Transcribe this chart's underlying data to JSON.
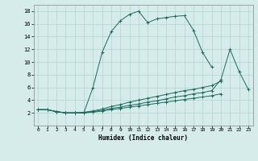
{
  "title": "",
  "xlabel": "Humidex (Indice chaleur)",
  "ylabel": "",
  "bg_color": "#d6ecea",
  "line_color": "#1a6b5e",
  "grid_color": "#b0d4cf",
  "xlim": [
    -0.5,
    23.5
  ],
  "ylim": [
    0,
    19
  ],
  "xticks": [
    0,
    1,
    2,
    3,
    4,
    5,
    6,
    7,
    8,
    9,
    10,
    11,
    12,
    13,
    14,
    15,
    16,
    17,
    18,
    19,
    20,
    21,
    22,
    23
  ],
  "yticks": [
    2,
    4,
    6,
    8,
    10,
    12,
    14,
    16,
    18
  ],
  "series": [
    {
      "x": [
        0,
        1,
        2,
        3,
        4,
        5,
        6,
        7,
        8,
        9,
        10,
        11,
        12,
        13,
        14,
        15,
        16,
        17,
        18,
        19
      ],
      "y": [
        2.5,
        2.5,
        2.2,
        2.0,
        2.0,
        2.0,
        6.0,
        11.5,
        14.8,
        16.5,
        17.5,
        18.0,
        16.2,
        16.8,
        17.0,
        17.2,
        17.3,
        15.0,
        11.5,
        9.2
      ]
    },
    {
      "x": [
        0,
        1,
        2,
        3,
        4,
        5,
        6,
        7,
        8,
        9,
        10,
        11,
        12,
        13,
        14,
        15,
        16,
        17,
        18,
        19,
        20
      ],
      "y": [
        2.5,
        2.5,
        2.2,
        2.0,
        2.0,
        2.1,
        2.3,
        2.6,
        3.0,
        3.3,
        3.7,
        4.0,
        4.3,
        4.6,
        4.9,
        5.2,
        5.5,
        5.7,
        6.0,
        6.3,
        7.0
      ]
    },
    {
      "x": [
        0,
        1,
        2,
        3,
        4,
        5,
        6,
        7,
        8,
        9,
        10,
        11,
        12,
        13,
        14,
        15,
        16,
        17,
        18,
        19,
        20,
        21,
        22,
        23
      ],
      "y": [
        2.5,
        2.5,
        2.2,
        2.0,
        2.0,
        2.0,
        2.2,
        2.4,
        2.7,
        2.9,
        3.2,
        3.4,
        3.7,
        3.9,
        4.2,
        4.5,
        4.7,
        5.0,
        5.2,
        5.5,
        7.2,
        12.0,
        8.5,
        5.7
      ]
    },
    {
      "x": [
        0,
        1,
        2,
        3,
        4,
        5,
        6,
        7,
        8,
        9,
        10,
        11,
        12,
        13,
        14,
        15,
        16,
        17,
        18,
        19,
        20
      ],
      "y": [
        2.5,
        2.5,
        2.2,
        2.0,
        2.0,
        2.0,
        2.1,
        2.3,
        2.5,
        2.7,
        2.9,
        3.1,
        3.3,
        3.5,
        3.7,
        3.9,
        4.1,
        4.3,
        4.5,
        4.7,
        5.0
      ]
    }
  ]
}
